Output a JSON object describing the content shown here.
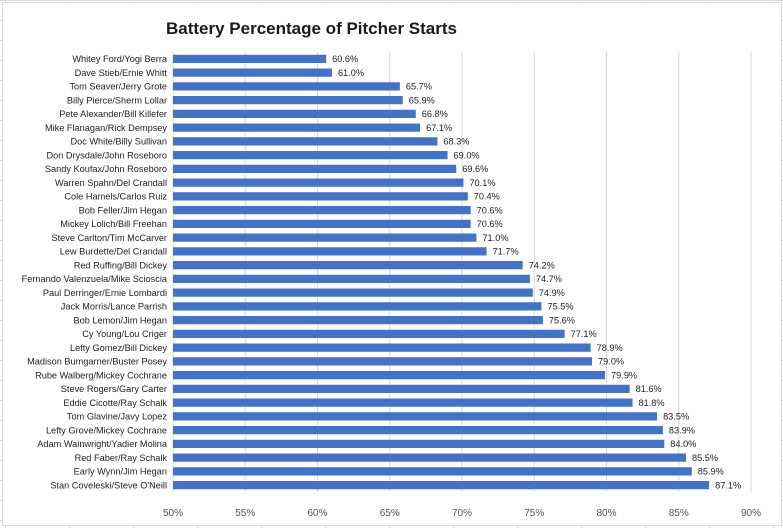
{
  "chart_data": {
    "type": "bar",
    "orientation": "horizontal",
    "title": "Battery Percentage of Pitcher Starts",
    "xlabel": "",
    "ylabel": "",
    "xlim": [
      50,
      90
    ],
    "xticks": [
      "50%",
      "55%",
      "60%",
      "65%",
      "70%",
      "75%",
      "80%",
      "85%",
      "90%"
    ],
    "grid": true,
    "bar_color": "#4472C4",
    "categories": [
      "Whitey Ford/Yogi Berra",
      "Dave Stieb/Ernie Whitt",
      "Tom Seaver/Jerry Grote",
      "Billy Pierce/Sherm Lollar",
      "Pete Alexander/Bill Killefer",
      "Mike Flanagan/Rick Dempsey",
      "Doc White/Billy Sullivan",
      "Don Drysdale/John Roseboro",
      "Sandy Koufax/John Roseboro",
      "Warren Spahn/Del Crandall",
      "Cole Hamels/Carlos Ruiz",
      "Bob Feller/Jim Hegan",
      "Mickey Lolich/Bill Freehan",
      "Steve Carlton/Tim McCarver",
      "Lew Burdette/Del Crandall",
      "Red Ruffing/Bill Dickey",
      "Fernando Valenzuela/Mike Scioscia",
      "Paul Derringer/Ernie Lombardi",
      "Jack Morris/Lance Parrish",
      "Bob Lemon/Jim Hegan",
      "Cy Young/Lou Criger",
      "Lefty Gomez/Bill Dickey",
      "Madison Bumgarner/Buster Posey",
      "Rube Walberg/Mickey Cochrane",
      "Steve Rogers/Gary Carter",
      "Eddie Cicotte/Ray Schalk",
      "Tom Glavine/Javy Lopez",
      "Lefty Grove/Mickey Cochrane",
      "Adam Wainwright/Yadier Molina",
      "Red Faber/Ray Schalk",
      "Early Wynn/Jim Hegan",
      "Stan Coveleski/Steve O'Neill"
    ],
    "values": [
      60.6,
      61.0,
      65.7,
      65.9,
      66.8,
      67.1,
      68.3,
      69.0,
      69.6,
      70.1,
      70.4,
      70.6,
      70.6,
      71.0,
      71.7,
      74.2,
      74.7,
      74.9,
      75.5,
      75.6,
      77.1,
      78.9,
      79.0,
      79.9,
      81.6,
      81.8,
      83.5,
      83.9,
      84.0,
      85.5,
      85.9,
      87.1
    ],
    "value_labels": [
      "60.6%",
      "61.0%",
      "65.7%",
      "65.9%",
      "66.8%",
      "67.1%",
      "68.3%",
      "69.0%",
      "69.6%",
      "70.1%",
      "70.4%",
      "70.6%",
      "70.6%",
      "71.0%",
      "71.7%",
      "74.2%",
      "74.7%",
      "74.9%",
      "75.5%",
      "75.6%",
      "77.1%",
      "78.9%",
      "79.0%",
      "79.9%",
      "81.6%",
      "81.8%",
      "83.5%",
      "83.9%",
      "84.0%",
      "85.5%",
      "85.9%",
      "87.1%"
    ]
  }
}
